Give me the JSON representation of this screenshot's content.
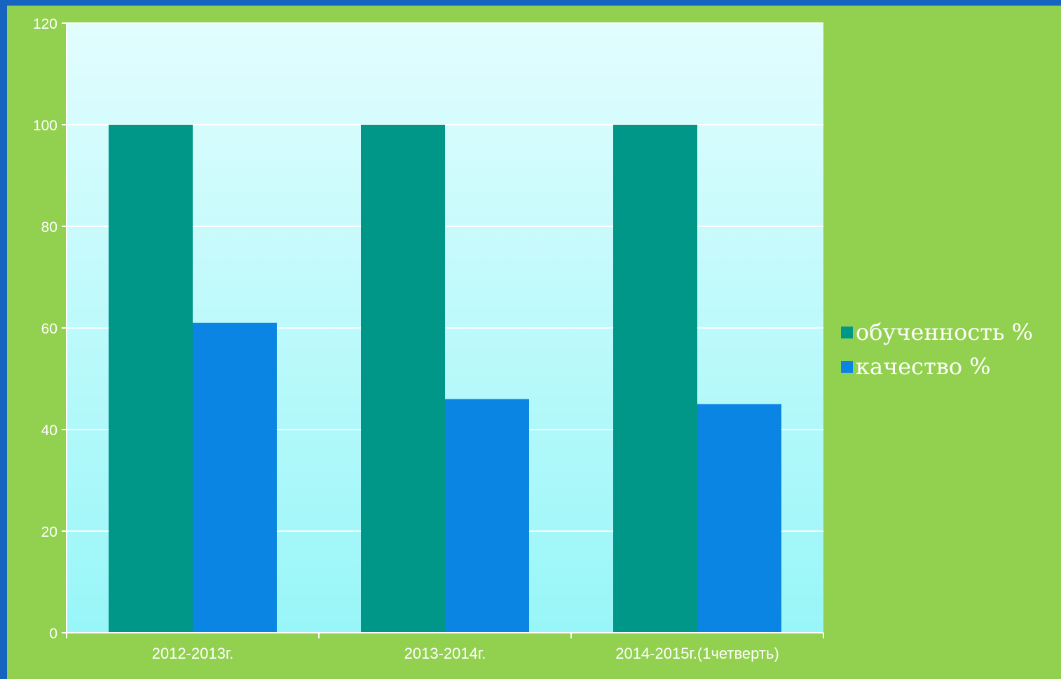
{
  "chart_data": {
    "type": "bar",
    "categories": [
      "2012-2013г.",
      "2013-2014г.",
      "2014-2015г.(1четверть)"
    ],
    "series": [
      {
        "name": "обученность %",
        "values": [
          100,
          100,
          100
        ],
        "color": "#009688"
      },
      {
        "name": "качество %",
        "values": [
          61,
          46,
          45
        ],
        "color": "#0a85e4"
      }
    ],
    "ylim": [
      0,
      120
    ],
    "yticks": [
      "0",
      "20",
      "40",
      "60",
      "80",
      "100",
      "120"
    ],
    "grid": true,
    "legend": "right"
  },
  "colors": {
    "background": "#92d050",
    "border": "#1565c0",
    "plot_top": "#e2fdfe",
    "plot_bottom": "#98f6f8"
  }
}
